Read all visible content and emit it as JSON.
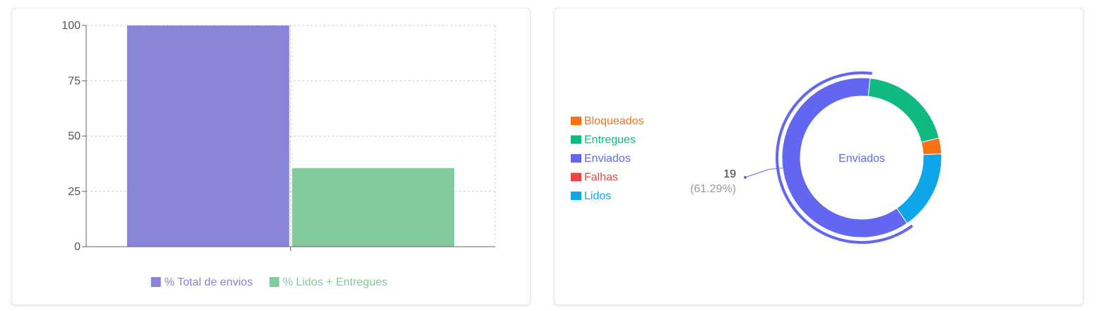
{
  "chart_data": [
    {
      "type": "bar",
      "categories": [
        ""
      ],
      "series": [
        {
          "name": "% Total de envios",
          "values": [
            100
          ],
          "color": "#8884d8"
        },
        {
          "name": "% Lidos + Entregues",
          "values": [
            35.5
          ],
          "color": "#82ca9d"
        }
      ],
      "yticks": [
        "0",
        "25",
        "50",
        "75",
        "100"
      ],
      "ylim": [
        0,
        100
      ],
      "grid": true,
      "legend_position": "bottom-center"
    },
    {
      "type": "pie",
      "center_label": "Enviados",
      "slices": [
        {
          "name": "Enviados",
          "value": 19,
          "color": "#6366f1"
        },
        {
          "name": "Entregues",
          "value": 6,
          "color": "#10b981"
        },
        {
          "name": "Bloqueados",
          "value": 1,
          "color": "#f97316"
        },
        {
          "name": "Lidos",
          "value": 5,
          "color": "#0ea5e9"
        },
        {
          "name": "Falhas",
          "value": 0,
          "color": "#ef4444"
        }
      ],
      "legend": [
        {
          "name": "Bloqueados",
          "color": "#f97316"
        },
        {
          "name": "Entregues",
          "color": "#10b981"
        },
        {
          "name": "Enviados",
          "color": "#6366f1"
        },
        {
          "name": "Falhas",
          "color": "#ef4444"
        },
        {
          "name": "Lidos",
          "color": "#0ea5e9"
        }
      ],
      "active_label": {
        "value": "19",
        "percent": "(61.29%)"
      },
      "legend_position": "left"
    }
  ]
}
